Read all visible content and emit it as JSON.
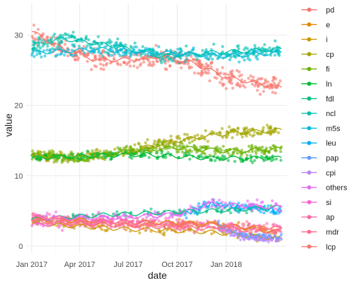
{
  "chart_data": {
    "type": "scatter",
    "xlabel": "date",
    "ylabel": "value",
    "x_range": [
      "2016-12-22",
      "2018-04-25"
    ],
    "ylim": [
      -1,
      34.5
    ],
    "x_ticks": [
      {
        "date": "2017-01-01",
        "label": "Jan 2017"
      },
      {
        "date": "2017-04-01",
        "label": "Apr 2017"
      },
      {
        "date": "2017-07-01",
        "label": "Jul 2017"
      },
      {
        "date": "2017-10-01",
        "label": "Oct 2017"
      },
      {
        "date": "2018-01-01",
        "label": "Jan 2018"
      }
    ],
    "y_ticks": [
      0,
      10,
      20,
      30
    ],
    "grid": true,
    "legend_position": "right",
    "series": [
      {
        "name": "pd",
        "color": "#F8766D",
        "trend": [
          [
            "2017-01-01",
            30.5
          ],
          [
            "2017-03-01",
            28.0
          ],
          [
            "2017-05-01",
            26.5
          ],
          [
            "2017-07-01",
            26.5
          ],
          [
            "2017-09-01",
            27.0
          ],
          [
            "2017-11-01",
            26.0
          ],
          [
            "2018-01-01",
            24.0
          ],
          [
            "2018-04-15",
            22.5
          ]
        ],
        "noise": 2.0,
        "points_per_segment": 18
      },
      {
        "name": "e",
        "color": "#E58700",
        "trend": [
          [
            "2017-01-01",
            3.8
          ],
          [
            "2017-06-01",
            3.5
          ],
          [
            "2017-12-01",
            3.2
          ],
          [
            "2018-04-15",
            2.0
          ]
        ],
        "noise": 0.8,
        "points_per_segment": 8
      },
      {
        "name": "i",
        "color": "#C99800",
        "trend": [
          [
            "2017-01-01",
            3.2
          ],
          [
            "2017-07-01",
            2.4
          ],
          [
            "2017-12-01",
            2.0
          ],
          [
            "2018-04-15",
            1.0
          ]
        ],
        "noise": 0.9,
        "points_per_segment": 8
      },
      {
        "name": "cp",
        "color": "#A3A500",
        "trend": [
          [
            "2017-01-01",
            12.8
          ],
          [
            "2017-04-01",
            12.5
          ],
          [
            "2017-07-01",
            13.5
          ],
          [
            "2017-10-01",
            15.0
          ],
          [
            "2018-01-01",
            16.0
          ],
          [
            "2018-04-15",
            16.5
          ]
        ],
        "noise": 1.2,
        "points_per_segment": 18
      },
      {
        "name": "fi",
        "color": "#6BB100",
        "trend": [
          [
            "2017-01-01",
            13.0
          ],
          [
            "2017-04-01",
            12.5
          ],
          [
            "2017-07-01",
            13.5
          ],
          [
            "2017-10-01",
            14.0
          ],
          [
            "2018-01-01",
            13.5
          ],
          [
            "2018-04-15",
            13.8
          ]
        ],
        "noise": 1.1,
        "points_per_segment": 18
      },
      {
        "name": "ln",
        "color": "#00BA38",
        "trend": [
          [
            "2017-01-01",
            12.5
          ],
          [
            "2017-04-01",
            12.8
          ],
          [
            "2017-08-01",
            13.0
          ],
          [
            "2017-12-01",
            12.5
          ],
          [
            "2018-04-15",
            12.5
          ]
        ],
        "noise": 0.9,
        "points_per_segment": 14
      },
      {
        "name": "fdl",
        "color": "#00BF7D",
        "trend": [
          [
            "2017-01-01",
            3.8
          ],
          [
            "2017-06-01",
            4.5
          ],
          [
            "2017-12-01",
            5.0
          ],
          [
            "2018-04-15",
            5.5
          ]
        ],
        "noise": 0.7,
        "points_per_segment": 10
      },
      {
        "name": "ncl",
        "color": "#00C0AF",
        "trend": [
          [
            "2017-01-01",
            28.5
          ],
          [
            "2017-03-01",
            29.5
          ],
          [
            "2017-06-01",
            28.5
          ],
          [
            "2017-09-01",
            27.0
          ],
          [
            "2017-12-01",
            27.5
          ],
          [
            "2018-04-15",
            28.0
          ]
        ],
        "noise": 1.5,
        "points_per_segment": 18
      },
      {
        "name": "m5s",
        "color": "#00BCD8",
        "trend": [
          [
            "2017-01-01",
            27.5
          ],
          [
            "2017-05-01",
            28.0
          ],
          [
            "2017-09-01",
            27.5
          ],
          [
            "2018-01-01",
            27.0
          ],
          [
            "2018-04-15",
            27.5
          ]
        ],
        "noise": 1.3,
        "points_per_segment": 14
      },
      {
        "name": "leu",
        "color": "#00B0F6",
        "trend": [
          [
            "2017-10-15",
            4.5
          ],
          [
            "2017-12-01",
            6.0
          ],
          [
            "2018-02-01",
            5.5
          ],
          [
            "2018-04-15",
            5.0
          ]
        ],
        "noise": 1.0,
        "points_per_segment": 8
      },
      {
        "name": "pap",
        "color": "#619CFF",
        "trend": [
          [
            "2017-12-15",
            3.0
          ],
          [
            "2018-02-01",
            1.5
          ],
          [
            "2018-04-15",
            1.2
          ]
        ],
        "noise": 0.8,
        "points_per_segment": 8
      },
      {
        "name": "cpi",
        "color": "#B983FF",
        "trend": [
          [
            "2017-12-15",
            2.5
          ],
          [
            "2018-02-01",
            1.2
          ],
          [
            "2018-04-15",
            0.9
          ]
        ],
        "noise": 0.7,
        "points_per_segment": 8
      },
      {
        "name": "others",
        "color": "#E76BF3",
        "trend": [
          [
            "2017-01-01",
            4.0
          ],
          [
            "2017-06-01",
            4.0
          ],
          [
            "2017-10-01",
            4.5
          ],
          [
            "2017-12-01",
            6.0
          ],
          [
            "2018-04-15",
            5.5
          ]
        ],
        "noise": 1.1,
        "points_per_segment": 12
      },
      {
        "name": "si",
        "color": "#FD61D1",
        "trend": [
          [
            "2017-01-01",
            3.0
          ],
          [
            "2017-06-01",
            3.5
          ],
          [
            "2017-12-01",
            3.0
          ],
          [
            "2018-04-15",
            2.5
          ]
        ],
        "noise": 1.2,
        "points_per_segment": 12
      },
      {
        "name": "ap",
        "color": "#FF67A4",
        "trend": [
          [
            "2017-01-01",
            4.2
          ],
          [
            "2017-06-01",
            3.5
          ],
          [
            "2017-12-01",
            3.0
          ],
          [
            "2018-04-15",
            2.5
          ]
        ],
        "noise": 1.0,
        "points_per_segment": 12
      },
      {
        "name": "mdr",
        "color": "#FF6C91",
        "trend": [
          [
            "2017-01-01",
            4.0
          ],
          [
            "2017-06-01",
            3.0
          ],
          [
            "2017-12-01",
            2.5
          ],
          [
            "2018-04-15",
            2.0
          ]
        ],
        "noise": 0.9,
        "points_per_segment": 10
      },
      {
        "name": "lcp",
        "color": "#F8766D",
        "trend": [
          [
            "2017-01-01",
            3.5
          ],
          [
            "2017-06-01",
            3.0
          ],
          [
            "2017-12-01",
            3.0
          ],
          [
            "2018-04-15",
            2.5
          ]
        ],
        "noise": 0.9,
        "points_per_segment": 10
      }
    ]
  }
}
